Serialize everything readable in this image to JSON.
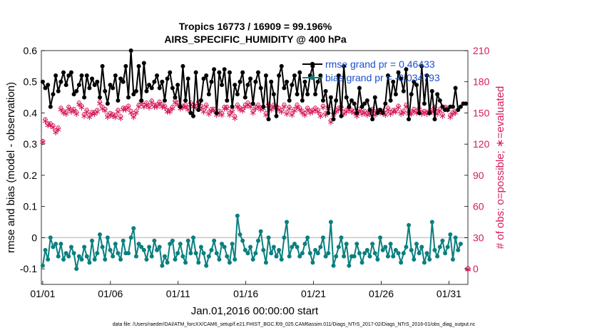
{
  "chart_data": {
    "type": "line",
    "title_line1": "Tropics 16773 / 16909 = 99.196%",
    "title_line2": "AIRS_SPECIFIC_HUMIDITY @ 400 hPa",
    "ylabel_left": "rmse and bias (model - observation)",
    "ylabel_right": "# of obs: o=possible; ∗=evaluated",
    "xlabel": "Jan.01,2016 00:00:00 start",
    "footer": "data file: /Users/raeder/DAI/ATM_forcXX/CAM6_setup/f.e21.FHIST_BGC.f09_025.CAM6assim.011/Diags_NTrS_2017-02/Diags_NTrS_2016-01/obs_diag_output.nc",
    "ylim_left": [
      -0.15,
      0.6
    ],
    "ylim_right": [
      -15,
      210
    ],
    "xlim": [
      0.9,
      32.4
    ],
    "yticks_left": [
      "-0.1",
      "0",
      "0.1",
      "0.2",
      "0.3",
      "0.4",
      "0.5",
      "0.6"
    ],
    "yticks_left_values": [
      -0.1,
      0,
      0.1,
      0.2,
      0.3,
      0.4,
      0.5,
      0.6
    ],
    "yticks_right": [
      "0",
      "30",
      "60",
      "90",
      "120",
      "150",
      "180",
      "210"
    ],
    "yticks_right_values": [
      0,
      30,
      60,
      90,
      120,
      150,
      180,
      210
    ],
    "xticks": [
      "01/01",
      "01/06",
      "01/11",
      "01/16",
      "01/21",
      "01/26",
      "01/31"
    ],
    "xticks_values": [
      1,
      6,
      11,
      16,
      21,
      26,
      31
    ],
    "legend": [
      "rmse grand pr = 0.46433",
      "bias grand pr = -0.034793"
    ],
    "legend_location": "top-right",
    "colors": {
      "rmse": "#000000",
      "bias": "#0a7f7f",
      "obs": "#d61a5a",
      "zero_line": "#c8c8c8"
    },
    "rmse_values": [
      0.5,
      0.48,
      0.49,
      0.42,
      0.46,
      0.52,
      0.47,
      0.5,
      0.53,
      0.49,
      0.52,
      0.53,
      0.46,
      0.47,
      0.49,
      0.52,
      0.45,
      0.52,
      0.48,
      0.51,
      0.49,
      0.5,
      0.45,
      0.55,
      0.47,
      0.43,
      0.49,
      0.48,
      0.52,
      0.44,
      0.51,
      0.5,
      0.55,
      0.45,
      0.6,
      0.46,
      0.47,
      0.55,
      0.44,
      0.56,
      0.47,
      0.49,
      0.48,
      0.5,
      0.52,
      0.48,
      0.5,
      0.44,
      0.51,
      0.53,
      0.48,
      0.45,
      0.49,
      0.42,
      0.55,
      0.44,
      0.51,
      0.4,
      0.39,
      0.53,
      0.41,
      0.44,
      0.51,
      0.52,
      0.46,
      0.5,
      0.54,
      0.4,
      0.53,
      0.49,
      0.54,
      0.44,
      0.53,
      0.42,
      0.49,
      0.46,
      0.5,
      0.53,
      0.45,
      0.49,
      0.51,
      0.43,
      0.5,
      0.53,
      0.48,
      0.42,
      0.52,
      0.38,
      0.5,
      0.46,
      0.39,
      0.52,
      0.55,
      0.48,
      0.5,
      0.44,
      0.49,
      0.52,
      0.46,
      0.53,
      0.44,
      0.5,
      0.46,
      0.52,
      0.55,
      0.46,
      0.5,
      0.52,
      0.44,
      0.47,
      0.4,
      0.45,
      0.38,
      0.44,
      0.52,
      0.39,
      0.55,
      0.45,
      0.42,
      0.44,
      0.43,
      0.4,
      0.48,
      0.42,
      0.43,
      0.44,
      0.41,
      0.38,
      0.45,
      0.4,
      0.41,
      0.4,
      0.43,
      0.52,
      0.44,
      0.5,
      0.46,
      0.53,
      0.51,
      0.47,
      0.54,
      0.38,
      0.46,
      0.5,
      0.49,
      0.4,
      0.55,
      0.43,
      0.52,
      0.4,
      0.47,
      0.38,
      0.46,
      0.44,
      0.42,
      0.41,
      0.41,
      0.42,
      0.42,
      0.48,
      0.41,
      0.42,
      0.43,
      0.43
    ],
    "bias_values": [
      -0.09,
      -0.04,
      -0.07,
      0.0,
      -0.03,
      -0.02,
      -0.06,
      -0.02,
      -0.07,
      -0.05,
      -0.06,
      -0.03,
      -0.05,
      -0.1,
      -0.06,
      -0.07,
      -0.03,
      -0.06,
      -0.08,
      -0.01,
      -0.07,
      -0.05,
      0.01,
      -0.03,
      -0.07,
      0.0,
      -0.04,
      -0.06,
      -0.02,
      -0.05,
      -0.07,
      -0.01,
      -0.05,
      -0.05,
      0.0,
      0.03,
      -0.06,
      -0.02,
      -0.03,
      -0.04,
      -0.07,
      -0.03,
      -0.06,
      -0.01,
      -0.04,
      -0.03,
      -0.09,
      -0.06,
      -0.08,
      -0.02,
      -0.01,
      -0.07,
      -0.05,
      -0.02,
      -0.06,
      -0.08,
      -0.01,
      -0.05,
      0.0,
      -0.05,
      -0.08,
      -0.03,
      -0.05,
      -0.09,
      -0.06,
      -0.04,
      -0.01,
      -0.05,
      -0.07,
      -0.02,
      -0.03,
      -0.06,
      -0.08,
      -0.02,
      -0.07,
      0.07,
      0.01,
      -0.01,
      -0.04,
      -0.05,
      -0.03,
      -0.07,
      -0.05,
      -0.01,
      0.02,
      -0.04,
      -0.08,
      0.0,
      -0.05,
      -0.03,
      -0.06,
      -0.04,
      -0.07,
      0.0,
      0.05,
      -0.06,
      -0.03,
      -0.02,
      -0.03,
      -0.06,
      -0.05,
      -0.02,
      0.0,
      -0.05,
      -0.08,
      -0.04,
      -0.05,
      -0.03,
      0.0,
      -0.06,
      -0.05,
      0.05,
      -0.09,
      -0.06,
      -0.03,
      0.0,
      -0.06,
      -0.02,
      -0.09,
      -0.06,
      -0.06,
      -0.02,
      -0.05,
      -0.08,
      -0.05,
      -0.04,
      -0.06,
      -0.02,
      -0.05,
      -0.07,
      0.0,
      -0.04,
      -0.03,
      -0.06,
      -0.02,
      -0.06,
      -0.04,
      -0.05,
      -0.08,
      -0.05,
      -0.03,
      0.04,
      -0.04,
      -0.07,
      -0.02,
      -0.05,
      -0.03,
      -0.08,
      -0.05,
      -0.07,
      0.05,
      -0.04,
      -0.06,
      -0.03,
      -0.01,
      -0.05,
      -0.03,
      0.01,
      -0.07,
      0.0,
      -0.04,
      -0.02
    ],
    "possible_values": [
      123,
      144,
      140,
      140,
      138,
      133,
      136,
      155,
      152,
      151,
      156,
      153,
      154,
      151,
      160,
      157,
      149,
      153,
      148,
      151,
      151,
      153,
      161,
      156,
      154,
      148,
      150,
      149,
      148,
      153,
      147,
      155,
      155,
      157,
      152,
      148,
      152,
      158,
      162,
      158,
      160,
      157,
      162,
      158,
      158,
      161,
      158,
      157,
      153,
      153,
      156,
      162,
      160,
      156,
      157,
      158,
      155,
      160,
      158,
      157,
      161,
      157,
      153,
      158,
      151,
      154,
      154,
      150,
      152,
      150,
      156,
      156,
      150,
      153,
      147,
      158,
      155,
      154,
      158,
      160,
      158,
      152,
      156,
      158,
      155,
      156,
      150,
      159,
      155,
      158,
      157,
      155,
      153,
      158,
      151,
      156,
      150,
      154,
      158,
      155,
      152,
      150,
      155,
      152,
      153,
      155,
      153,
      149,
      157,
      150,
      156,
      143,
      150,
      153,
      155,
      156,
      151,
      153,
      155,
      153,
      152,
      149,
      154,
      151,
      152,
      150,
      151,
      154,
      150,
      153,
      152,
      152,
      150,
      155,
      151,
      153,
      153,
      157,
      151,
      152,
      158,
      151,
      151,
      154,
      152,
      155,
      151,
      152,
      151,
      152,
      153,
      156,
      151,
      154,
      149,
      156,
      155,
      148,
      151,
      152
    ],
    "evaluated_values": [
      123,
      143,
      139,
      139,
      137,
      132,
      135,
      154,
      151,
      150,
      155,
      152,
      153,
      150,
      159,
      156,
      148,
      152,
      147,
      150,
      150,
      152,
      160,
      155,
      153,
      147,
      149,
      148,
      147,
      152,
      146,
      154,
      154,
      156,
      151,
      147,
      151,
      157,
      161,
      157,
      159,
      156,
      161,
      157,
      157,
      160,
      157,
      156,
      152,
      152,
      155,
      161,
      159,
      155,
      156,
      157,
      154,
      159,
      157,
      156,
      160,
      156,
      152,
      157,
      150,
      153,
      153,
      149,
      151,
      149,
      155,
      155,
      149,
      152,
      146,
      157,
      154,
      153,
      157,
      159,
      157,
      151,
      155,
      157,
      154,
      155,
      149,
      158,
      154,
      157,
      156,
      154,
      152,
      157,
      150,
      155,
      149,
      153,
      157,
      154,
      151,
      149,
      154,
      151,
      152,
      154,
      152,
      148,
      156,
      149,
      155,
      142,
      149,
      152,
      154,
      155,
      150,
      152,
      154,
      152,
      151,
      148,
      153,
      150,
      151,
      149,
      150,
      153,
      149,
      152,
      151,
      151,
      149,
      154,
      150,
      152,
      152,
      156,
      150,
      151,
      157,
      150,
      150,
      153,
      151,
      154,
      150,
      151,
      150,
      151,
      152,
      155,
      150,
      153,
      148,
      155,
      154,
      147,
      150,
      151
    ],
    "obs_extra_point": {
      "x": 32.4,
      "possible": 0,
      "evaluated": 0
    }
  }
}
